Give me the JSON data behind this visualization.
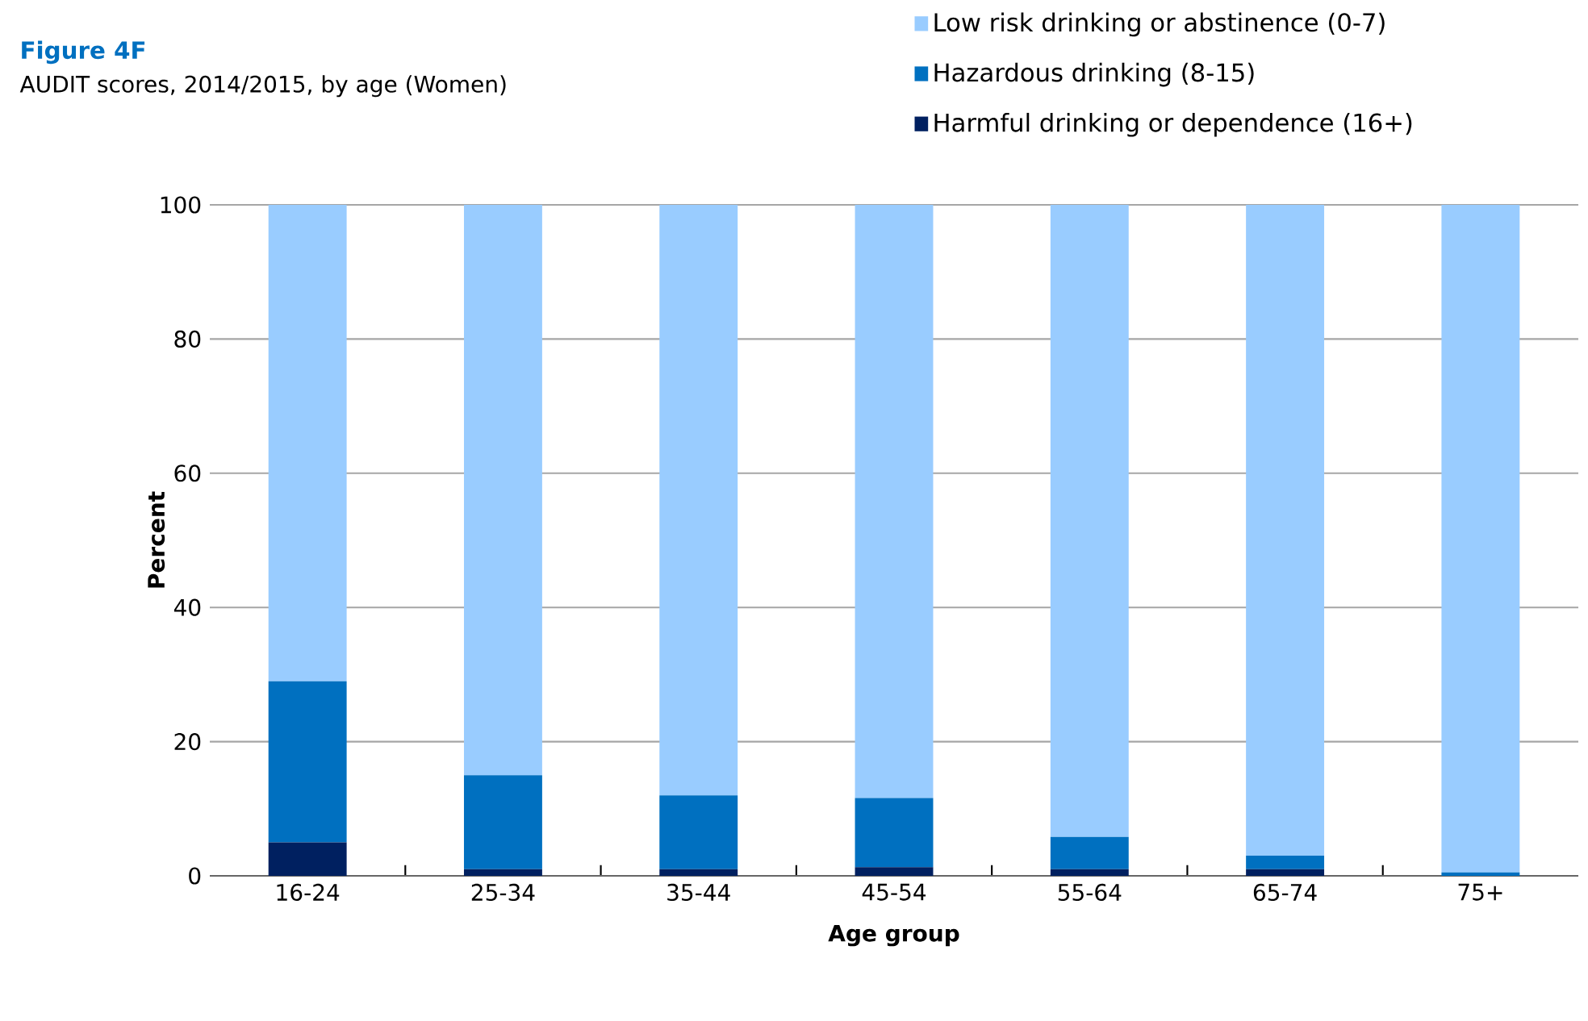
{
  "chart_data": {
    "type": "bar",
    "title": "Figure 4F",
    "subtitle": "AUDIT scores, 2014/2015, by age (Women)",
    "xlabel": "Age group",
    "ylabel": "Percent",
    "categories": [
      "16-24",
      "25-34",
      "35-44",
      "45-54",
      "55-64",
      "65-74",
      "75+"
    ],
    "stacked": true,
    "series": [
      {
        "name": "Harmful drinking or dependence (16+)",
        "color": "#002060",
        "values": [
          5,
          1,
          1,
          1.3,
          1,
          1,
          0
        ]
      },
      {
        "name": "Hazardous drinking (8-15)",
        "color": "#0070c0",
        "values": [
          24,
          14,
          11,
          10.3,
          4.8,
          2,
          0.5
        ]
      },
      {
        "name": "Low risk drinking or abstinence (0-7)",
        "color": "#99ccff",
        "values": [
          71,
          85,
          88,
          88.4,
          94.2,
          97,
          99.5
        ]
      }
    ],
    "ylim": [
      0,
      100
    ],
    "yticks": [
      0,
      20,
      40,
      60,
      80,
      100
    ],
    "grid": "y",
    "legend": "top right"
  }
}
